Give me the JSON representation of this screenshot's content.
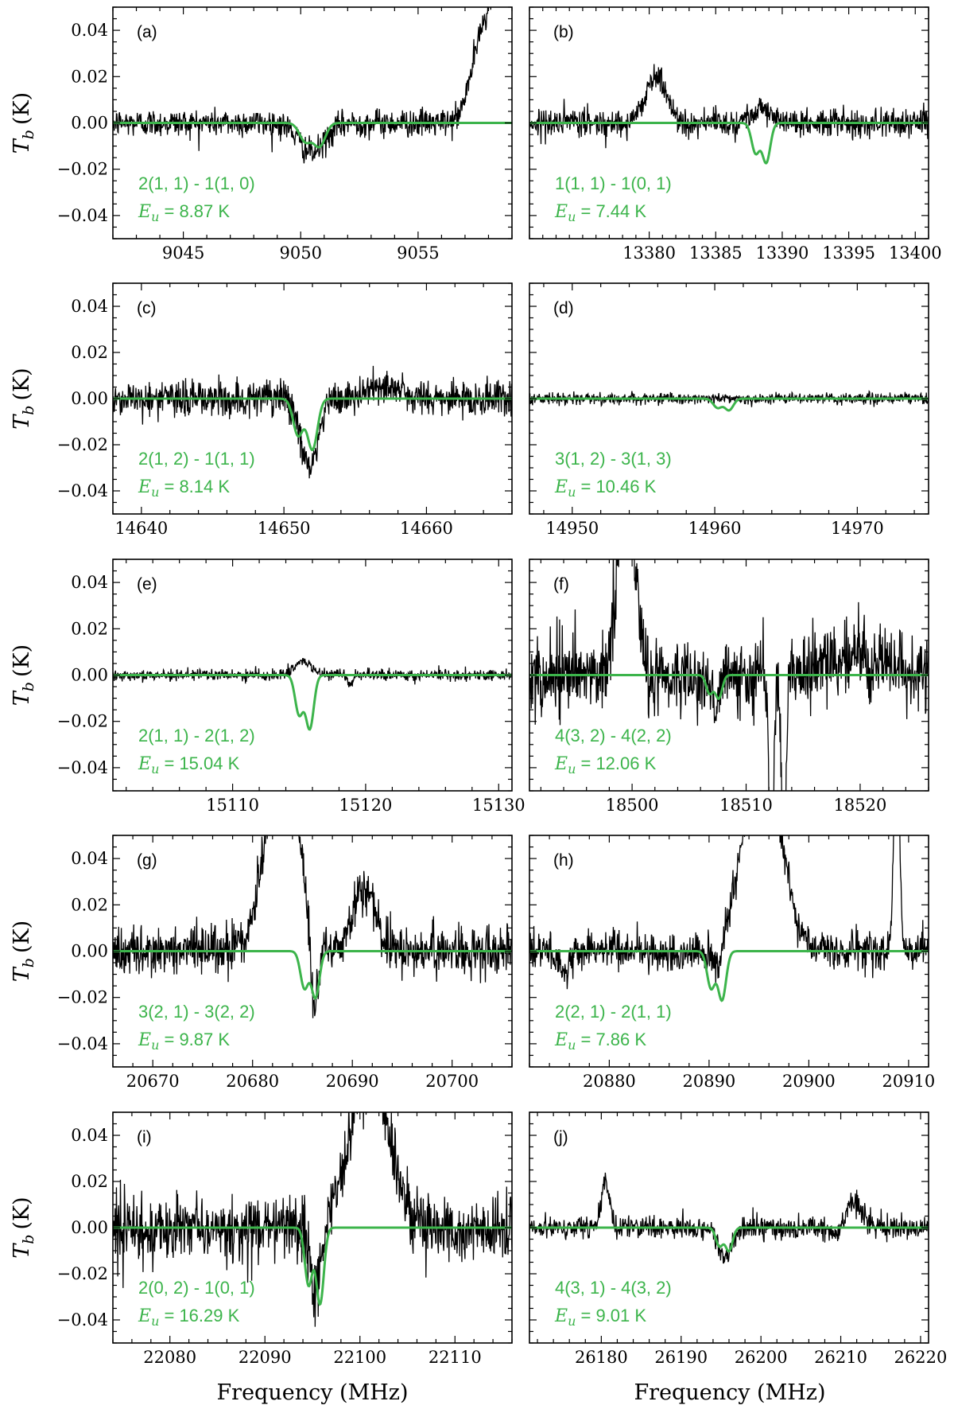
{
  "figure": {
    "xlabel": "Frequency (MHz)",
    "ylabel": "T_b (K)",
    "ylabel_main": "T",
    "ylabel_sub": "b",
    "ylabel_unit": "(K)",
    "eu_symbol": "E",
    "eu_sub": "u",
    "data_color": "#000000",
    "model_color": "#3cb44b"
  },
  "chart_data": [
    {
      "type": "line",
      "panel": "(a)",
      "transition": "2(1, 1) - 1(1, 0)",
      "eu_value": "8.87 K",
      "xlim": [
        9042,
        9059
      ],
      "ylim": [
        -0.05,
        0.05
      ],
      "xticks": [
        9045,
        9050,
        9055
      ],
      "yticks": [
        -0.04,
        -0.02,
        0.0,
        0.02,
        0.04
      ],
      "ytick_labels": [
        "−0.04",
        "−0.02",
        "0.00",
        "0.02",
        "0.04"
      ],
      "model_lines": [
        {
          "x": 9050.2,
          "depth": -0.008,
          "width": 0.25
        },
        {
          "x": 9050.8,
          "depth": -0.01,
          "width": 0.25
        }
      ],
      "observed_features": [
        {
          "x": 9050.5,
          "amp": -0.013,
          "width": 0.55
        },
        {
          "x": 9058.6,
          "amp": 0.07,
          "width": 0.6
        },
        {
          "x": 9057.5,
          "amp": 0.02,
          "width": 0.4
        }
      ],
      "noise": 0.003
    },
    {
      "type": "line",
      "panel": "(b)",
      "transition": "1(1, 1) - 1(0, 1)",
      "eu_value": "7.44 K",
      "xlim": [
        13371,
        13401
      ],
      "ylim": [
        -0.05,
        0.05
      ],
      "xticks": [
        13380,
        13385,
        13390,
        13395,
        13400
      ],
      "yticks": [
        -0.04,
        -0.02,
        0.0,
        0.02,
        0.04
      ],
      "ytick_labels": [
        "−0.04",
        "−0.02",
        "0.00",
        "0.02",
        "0.04"
      ],
      "model_lines": [
        {
          "x": 13388,
          "depth": -0.013,
          "width": 0.3
        },
        {
          "x": 13388.8,
          "depth": -0.017,
          "width": 0.3
        }
      ],
      "observed_features": [
        {
          "x": 13380.5,
          "amp": 0.02,
          "width": 0.8
        },
        {
          "x": 13388.3,
          "amp": 0.007,
          "width": 0.7
        }
      ],
      "noise": 0.003
    },
    {
      "type": "line",
      "panel": "(c)",
      "transition": "2(1, 2) - 1(1, 1)",
      "eu_value": "8.14 K",
      "xlim": [
        14638,
        14666
      ],
      "ylim": [
        -0.05,
        0.05
      ],
      "xticks": [
        14640,
        14650,
        14660
      ],
      "yticks": [
        -0.04,
        -0.02,
        0.0,
        0.02,
        0.04
      ],
      "ytick_labels": [
        "−0.04",
        "−0.02",
        "0.00",
        "0.02",
        "0.04"
      ],
      "model_lines": [
        {
          "x": 14651,
          "depth": -0.016,
          "width": 0.35
        },
        {
          "x": 14652,
          "depth": -0.022,
          "width": 0.35
        }
      ],
      "observed_features": [
        {
          "x": 14651.8,
          "amp": -0.03,
          "width": 0.6
        },
        {
          "x": 14657,
          "amp": 0.006,
          "width": 1.0
        }
      ],
      "noise": 0.004
    },
    {
      "type": "line",
      "panel": "(d)",
      "transition": "3(1, 2) - 3(1, 3)",
      "eu_value": "10.46 K",
      "xlim": [
        14947,
        14975
      ],
      "ylim": [
        -0.05,
        0.05
      ],
      "xticks": [
        14950,
        14960,
        14970
      ],
      "yticks": [
        -0.04,
        -0.02,
        0.0,
        0.02,
        0.04
      ],
      "ytick_labels": [
        "−0.04",
        "−0.02",
        "0.00",
        "0.02",
        "0.04"
      ],
      "model_lines": [
        {
          "x": 14960.2,
          "depth": -0.004,
          "width": 0.3
        },
        {
          "x": 14961,
          "depth": -0.005,
          "width": 0.3
        }
      ],
      "observed_features": [],
      "noise": 0.0012
    },
    {
      "type": "line",
      "panel": "(e)",
      "transition": "2(1, 1) - 2(1, 2)",
      "eu_value": "15.04 K",
      "xlim": [
        15101,
        15131
      ],
      "ylim": [
        -0.05,
        0.05
      ],
      "xticks": [
        15110,
        15120,
        15130
      ],
      "yticks": [
        -0.04,
        -0.02,
        0.0,
        0.02,
        0.04
      ],
      "ytick_labels": [
        "−0.04",
        "−0.02",
        "0.00",
        "0.02",
        "0.04"
      ],
      "model_lines": [
        {
          "x": 15115,
          "depth": -0.017,
          "width": 0.3
        },
        {
          "x": 15115.8,
          "depth": -0.023,
          "width": 0.3
        }
      ],
      "observed_features": [
        {
          "x": 15115.3,
          "amp": 0.006,
          "width": 0.6
        },
        {
          "x": 15118.8,
          "amp": -0.004,
          "width": 0.2
        }
      ],
      "noise": 0.0012
    },
    {
      "type": "line",
      "panel": "(f)",
      "transition": "4(3, 2) - 4(2, 2)",
      "eu_value": "12.06 K",
      "xlim": [
        18491,
        18526
      ],
      "ylim": [
        -0.05,
        0.05
      ],
      "xticks": [
        18500,
        18510,
        18520
      ],
      "yticks": [
        -0.04,
        -0.02,
        0.0,
        0.02,
        0.04
      ],
      "ytick_labels": [
        "−0.04",
        "−0.02",
        "0.00",
        "0.02",
        "0.04"
      ],
      "model_lines": [
        {
          "x": 18506.8,
          "depth": -0.008,
          "width": 0.3
        },
        {
          "x": 18507.6,
          "depth": -0.01,
          "width": 0.3
        }
      ],
      "observed_features": [
        {
          "x": 18499.5,
          "amp": 0.09,
          "width": 0.7
        },
        {
          "x": 18512.2,
          "amp": -0.09,
          "width": 0.2
        },
        {
          "x": 18513.3,
          "amp": -0.08,
          "width": 0.2
        },
        {
          "x": 18519,
          "amp": 0.008,
          "width": 2.5
        },
        {
          "x": 18507.2,
          "amp": -0.01,
          "width": 0.5
        }
      ],
      "noise": 0.008
    },
    {
      "type": "line",
      "panel": "(g)",
      "transition": "3(2, 1) - 3(2, 2)",
      "eu_value": "9.87 K",
      "xlim": [
        20666,
        20706
      ],
      "ylim": [
        -0.05,
        0.05
      ],
      "xticks": [
        20670,
        20680,
        20690,
        20700
      ],
      "yticks": [
        -0.04,
        -0.02,
        0.0,
        0.02,
        0.04
      ],
      "ytick_labels": [
        "−0.04",
        "−0.02",
        "0.00",
        "0.02",
        "0.04"
      ],
      "model_lines": [
        {
          "x": 20685.2,
          "depth": -0.016,
          "width": 0.4
        },
        {
          "x": 20686.3,
          "depth": -0.02,
          "width": 0.4
        }
      ],
      "observed_features": [
        {
          "x": 20683,
          "amp": 0.09,
          "width": 1.6
        },
        {
          "x": 20686.2,
          "amp": -0.035,
          "width": 0.4
        },
        {
          "x": 20691.2,
          "amp": 0.027,
          "width": 1.1
        }
      ],
      "noise": 0.005
    },
    {
      "type": "line",
      "panel": "(h)",
      "transition": "2(2, 1) - 2(1, 1)",
      "eu_value": "7.86 K",
      "xlim": [
        20872,
        20912
      ],
      "ylim": [
        -0.05,
        0.05
      ],
      "xticks": [
        20880,
        20890,
        20900,
        20910
      ],
      "yticks": [
        -0.04,
        -0.02,
        0.0,
        0.02,
        0.04
      ],
      "ytick_labels": [
        "−0.04",
        "−0.02",
        "0.00",
        "0.02",
        "0.04"
      ],
      "model_lines": [
        {
          "x": 20890.2,
          "depth": -0.016,
          "width": 0.4
        },
        {
          "x": 20891.3,
          "depth": -0.021,
          "width": 0.4
        }
      ],
      "observed_features": [
        {
          "x": 20895.3,
          "amp": 0.09,
          "width": 1.8
        },
        {
          "x": 20908.8,
          "amp": 0.12,
          "width": 0.25
        },
        {
          "x": 20875.5,
          "amp": -0.01,
          "width": 0.4
        },
        {
          "x": 20890.8,
          "amp": -0.01,
          "width": 0.5
        }
      ],
      "noise": 0.004
    },
    {
      "type": "line",
      "panel": "(i)",
      "transition": "2(0, 2) - 1(0, 1)",
      "eu_value": "16.29 K",
      "xlim": [
        22074,
        22116
      ],
      "ylim": [
        -0.05,
        0.05
      ],
      "xticks": [
        22080,
        22090,
        22100,
        22110
      ],
      "yticks": [
        -0.04,
        -0.02,
        0.0,
        0.02,
        0.04
      ],
      "ytick_labels": [
        "−0.04",
        "−0.02",
        "0.00",
        "0.02",
        "0.04"
      ],
      "model_lines": [
        {
          "x": 22094.6,
          "depth": -0.025,
          "width": 0.4
        },
        {
          "x": 22095.8,
          "depth": -0.033,
          "width": 0.4
        }
      ],
      "observed_features": [
        {
          "x": 22101,
          "amp": 0.07,
          "width": 2.0
        },
        {
          "x": 22095.3,
          "amp": -0.03,
          "width": 0.5
        }
      ],
      "noise": 0.007
    },
    {
      "type": "line",
      "panel": "(j)",
      "transition": "4(3, 1) - 4(3, 2)",
      "eu_value": "9.01 K",
      "xlim": [
        26171,
        26221
      ],
      "ylim": [
        -0.05,
        0.05
      ],
      "xticks": [
        26180,
        26190,
        26200,
        26210,
        26220
      ],
      "yticks": [
        -0.04,
        -0.02,
        0.0,
        0.02,
        0.04
      ],
      "ytick_labels": [
        "−0.04",
        "−0.02",
        "0.00",
        "0.02",
        "0.04"
      ],
      "model_lines": [
        {
          "x": 26194.8,
          "depth": -0.008,
          "width": 0.45
        },
        {
          "x": 26196,
          "depth": -0.01,
          "width": 0.45
        }
      ],
      "observed_features": [
        {
          "x": 26180.5,
          "amp": 0.02,
          "width": 0.5
        },
        {
          "x": 26195.5,
          "amp": -0.013,
          "width": 0.8
        },
        {
          "x": 26211.5,
          "amp": 0.01,
          "width": 1.2
        },
        {
          "x": 26209.5,
          "amp": -0.005,
          "width": 0.8
        }
      ],
      "noise": 0.0025
    }
  ]
}
